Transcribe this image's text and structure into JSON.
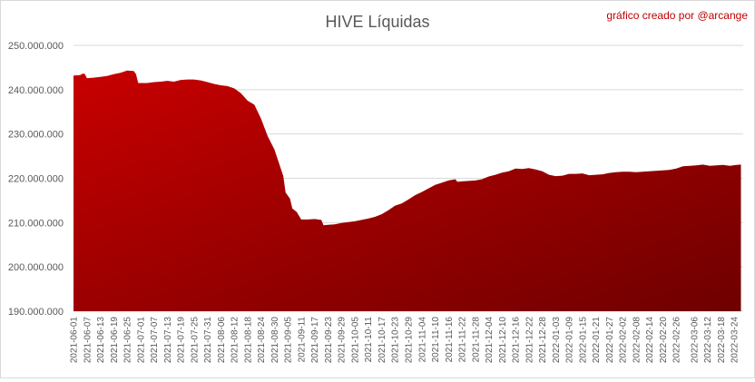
{
  "chart_data": {
    "type": "area",
    "title": "HIVE Líquidas",
    "credit": "gráfico creado por @arcange",
    "xlabel": "",
    "ylabel": "",
    "ylim": [
      190000000,
      250000000
    ],
    "grid": true,
    "legend": "none",
    "colors": {
      "fill_light": "#c80000",
      "fill_dark": "#6e0000",
      "text": "#595959",
      "credit": "#c00000"
    },
    "y_ticks": [
      "190.000.000",
      "200.000.000",
      "210.000.000",
      "220.000.000",
      "230.000.000",
      "240.000.000",
      "250.000.000"
    ],
    "x_ticks": [
      "2021-06-01",
      "2021-06-07",
      "2021-06-13",
      "2021-06-19",
      "2021-06-25",
      "2021-07-01",
      "2021-07-07",
      "2021-07-13",
      "2021-07-19",
      "2021-07-25",
      "2021-07-31",
      "2021-08-06",
      "2021-08-12",
      "2021-08-18",
      "2021-08-24",
      "2021-08-30",
      "2021-09-05",
      "2021-09-11",
      "2021-09-17",
      "2021-09-23",
      "2021-09-29",
      "2021-10-05",
      "2021-10-11",
      "2021-10-17",
      "2021-10-23",
      "2021-10-29",
      "2021-11-04",
      "2021-11-10",
      "2021-11-16",
      "2021-11-22",
      "2021-11-28",
      "2021-12-04",
      "2021-12-10",
      "2021-12-16",
      "2021-12-22",
      "2021-12-28",
      "2022-01-03",
      "2022-01-09",
      "2022-01-15",
      "2022-01-21",
      "2022-01-27",
      "2022-02-02",
      "2022-02-08",
      "2022-02-14",
      "2022-02-20",
      "2022-02-26",
      "2022-03-06",
      "2022-03-12",
      "2022-03-18",
      "2022-03-24"
    ],
    "series": [
      {
        "points": [
          [
            "2021-06-01",
            243200000
          ],
          [
            "2021-06-04",
            243300000
          ],
          [
            "2021-06-05",
            243600000
          ],
          [
            "2021-06-06",
            243600000
          ],
          [
            "2021-06-07",
            242600000
          ],
          [
            "2021-06-10",
            242700000
          ],
          [
            "2021-06-13",
            242900000
          ],
          [
            "2021-06-16",
            243100000
          ],
          [
            "2021-06-19",
            243500000
          ],
          [
            "2021-06-22",
            243800000
          ],
          [
            "2021-06-25",
            244300000
          ],
          [
            "2021-06-28",
            244200000
          ],
          [
            "2021-06-29",
            243500000
          ],
          [
            "2021-06-30",
            241500000
          ],
          [
            "2021-07-04",
            241500000
          ],
          [
            "2021-07-07",
            241700000
          ],
          [
            "2021-07-10",
            241800000
          ],
          [
            "2021-07-13",
            242000000
          ],
          [
            "2021-07-16",
            241800000
          ],
          [
            "2021-07-19",
            242200000
          ],
          [
            "2021-07-22",
            242300000
          ],
          [
            "2021-07-25",
            242300000
          ],
          [
            "2021-07-28",
            242100000
          ],
          [
            "2021-07-31",
            241700000
          ],
          [
            "2021-08-03",
            241300000
          ],
          [
            "2021-08-06",
            241000000
          ],
          [
            "2021-08-09",
            240800000
          ],
          [
            "2021-08-12",
            240300000
          ],
          [
            "2021-08-15",
            239200000
          ],
          [
            "2021-08-18",
            237500000
          ],
          [
            "2021-08-21",
            236600000
          ],
          [
            "2021-08-24",
            233500000
          ],
          [
            "2021-08-27",
            229500000
          ],
          [
            "2021-08-30",
            226500000
          ],
          [
            "2021-09-01",
            223500000
          ],
          [
            "2021-09-03",
            220500000
          ],
          [
            "2021-09-04",
            216800000
          ],
          [
            "2021-09-06",
            215400000
          ],
          [
            "2021-09-07",
            213200000
          ],
          [
            "2021-09-09",
            212400000
          ],
          [
            "2021-09-11",
            210700000
          ],
          [
            "2021-09-14",
            210700000
          ],
          [
            "2021-09-17",
            210800000
          ],
          [
            "2021-09-20",
            210600000
          ],
          [
            "2021-09-21",
            209400000
          ],
          [
            "2021-09-23",
            209500000
          ],
          [
            "2021-09-26",
            209600000
          ],
          [
            "2021-09-29",
            209900000
          ],
          [
            "2021-10-02",
            210100000
          ],
          [
            "2021-10-05",
            210300000
          ],
          [
            "2021-10-08",
            210600000
          ],
          [
            "2021-10-11",
            210900000
          ],
          [
            "2021-10-14",
            211300000
          ],
          [
            "2021-10-17",
            211900000
          ],
          [
            "2021-10-20",
            212800000
          ],
          [
            "2021-10-23",
            213800000
          ],
          [
            "2021-10-26",
            214300000
          ],
          [
            "2021-10-29",
            215200000
          ],
          [
            "2021-11-01",
            216200000
          ],
          [
            "2021-11-04",
            216900000
          ],
          [
            "2021-11-07",
            217700000
          ],
          [
            "2021-11-10",
            218500000
          ],
          [
            "2021-11-13",
            219000000
          ],
          [
            "2021-11-16",
            219500000
          ],
          [
            "2021-11-19",
            219800000
          ],
          [
            "2021-11-20",
            219200000
          ],
          [
            "2021-11-22",
            219300000
          ],
          [
            "2021-11-25",
            219400000
          ],
          [
            "2021-11-28",
            219500000
          ],
          [
            "2021-12-01",
            219800000
          ],
          [
            "2021-12-04",
            220400000
          ],
          [
            "2021-12-07",
            220800000
          ],
          [
            "2021-12-10",
            221300000
          ],
          [
            "2021-12-13",
            221600000
          ],
          [
            "2021-12-16",
            222200000
          ],
          [
            "2021-12-19",
            222100000
          ],
          [
            "2021-12-22",
            222300000
          ],
          [
            "2021-12-25",
            222000000
          ],
          [
            "2021-12-28",
            221600000
          ],
          [
            "2021-12-31",
            220800000
          ],
          [
            "2022-01-03",
            220500000
          ],
          [
            "2022-01-06",
            220600000
          ],
          [
            "2022-01-09",
            221000000
          ],
          [
            "2022-01-12",
            221000000
          ],
          [
            "2022-01-15",
            221100000
          ],
          [
            "2022-01-18",
            220700000
          ],
          [
            "2022-01-21",
            220800000
          ],
          [
            "2022-01-24",
            220900000
          ],
          [
            "2022-01-27",
            221200000
          ],
          [
            "2022-01-30",
            221400000
          ],
          [
            "2022-02-02",
            221500000
          ],
          [
            "2022-02-05",
            221500000
          ],
          [
            "2022-02-08",
            221400000
          ],
          [
            "2022-02-11",
            221500000
          ],
          [
            "2022-02-14",
            221600000
          ],
          [
            "2022-02-17",
            221700000
          ],
          [
            "2022-02-20",
            221800000
          ],
          [
            "2022-02-23",
            221900000
          ],
          [
            "2022-02-26",
            222200000
          ],
          [
            "2022-03-01",
            222700000
          ],
          [
            "2022-03-04",
            222800000
          ],
          [
            "2022-03-07",
            222900000
          ],
          [
            "2022-03-10",
            223100000
          ],
          [
            "2022-03-13",
            222800000
          ],
          [
            "2022-03-16",
            222900000
          ],
          [
            "2022-03-19",
            223000000
          ],
          [
            "2022-03-22",
            222800000
          ],
          [
            "2022-03-25",
            223000000
          ],
          [
            "2022-03-27",
            223100000
          ]
        ]
      }
    ]
  }
}
